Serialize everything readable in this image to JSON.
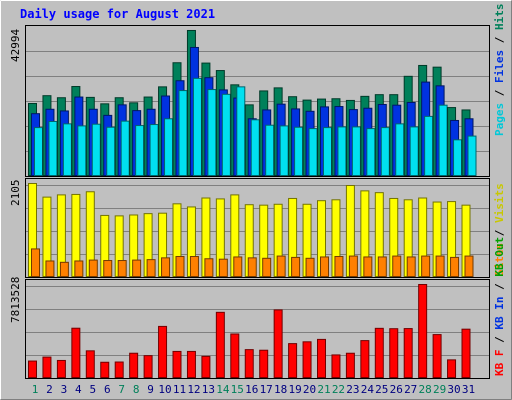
{
  "chart_data": [
    {
      "type": "bar",
      "title": "Daily usage for August 2021",
      "ymax_label": "42994",
      "ylim": [
        0,
        42994
      ],
      "grid": true,
      "categories": [
        "1",
        "2",
        "3",
        "4",
        "5",
        "6",
        "7",
        "8",
        "9",
        "10",
        "11",
        "12",
        "13",
        "14",
        "15",
        "16",
        "17",
        "18",
        "19",
        "20",
        "21",
        "22",
        "23",
        "24",
        "25",
        "26",
        "27",
        "28",
        "29",
        "30",
        "31"
      ],
      "weekend_days": [
        "1",
        "7",
        "8",
        "14",
        "15",
        "21",
        "22",
        "28",
        "29"
      ],
      "series": [
        {
          "name": "Hits",
          "color": "#00805a",
          "values": [
            21500,
            23800,
            23200,
            26500,
            23300,
            21400,
            23200,
            21700,
            23400,
            26400,
            33500,
            43000,
            33400,
            31200,
            27000,
            21100,
            25200,
            26100,
            23500,
            22500,
            22800,
            22900,
            22400,
            23600,
            24100,
            24100,
            29500,
            32700,
            32200,
            20300,
            19600
          ]
        },
        {
          "name": "Files",
          "color": "#0032e0",
          "values": [
            18500,
            19800,
            19300,
            23400,
            19800,
            18000,
            21100,
            19400,
            19800,
            23700,
            28200,
            38000,
            29100,
            25500,
            23100,
            17000,
            19600,
            21300,
            19900,
            19200,
            20500,
            20600,
            19700,
            20100,
            21200,
            21000,
            21800,
            27800,
            26700,
            16500,
            17000
          ]
        },
        {
          "name": "Pages",
          "color": "#00e0f0",
          "values": [
            14400,
            16200,
            15500,
            14900,
            15400,
            14500,
            16300,
            15000,
            15300,
            17000,
            25300,
            28900,
            25600,
            24200,
            26400,
            16700,
            15100,
            14900,
            14500,
            14100,
            14400,
            14600,
            14600,
            14100,
            14400,
            15500,
            14600,
            17700,
            21000,
            10800,
            11900
          ]
        }
      ]
    },
    {
      "type": "bar",
      "ymax_label": "2105",
      "ylim": [
        0,
        2105
      ],
      "grid": true,
      "categories": [
        "1",
        "2",
        "3",
        "4",
        "5",
        "6",
        "7",
        "8",
        "9",
        "10",
        "11",
        "12",
        "13",
        "14",
        "15",
        "16",
        "17",
        "18",
        "19",
        "20",
        "21",
        "22",
        "23",
        "24",
        "25",
        "26",
        "27",
        "28",
        "29",
        "30",
        "31"
      ],
      "series": [
        {
          "name": "Visits",
          "color": "#ffff00",
          "values": [
            2105,
            1800,
            1850,
            1860,
            1920,
            1390,
            1380,
            1400,
            1430,
            1440,
            1650,
            1580,
            1780,
            1760,
            1850,
            1630,
            1620,
            1640,
            1770,
            1640,
            1720,
            1740,
            2060,
            1940,
            1900,
            1770,
            1740,
            1780,
            1690,
            1700,
            1620
          ]
        },
        {
          "name": "Sites",
          "color": "#ff8000",
          "values": [
            640,
            370,
            340,
            370,
            390,
            380,
            380,
            390,
            400,
            440,
            470,
            470,
            420,
            410,
            460,
            440,
            430,
            480,
            450,
            430,
            460,
            470,
            480,
            460,
            460,
            480,
            460,
            480,
            480,
            450,
            480
          ]
        }
      ]
    },
    {
      "type": "bar",
      "ymax_label": "7813528",
      "ylim": [
        0,
        7813528
      ],
      "grid": true,
      "categories": [
        "1",
        "2",
        "3",
        "4",
        "5",
        "6",
        "7",
        "8",
        "9",
        "10",
        "11",
        "12",
        "13",
        "14",
        "15",
        "16",
        "17",
        "18",
        "19",
        "20",
        "21",
        "22",
        "23",
        "24",
        "25",
        "26",
        "27",
        "28",
        "29",
        "30",
        "31"
      ],
      "series": [
        {
          "name": "KB F",
          "color": "#ff0000",
          "values": [
            1450000,
            1780000,
            1500000,
            4180000,
            2300000,
            1350000,
            1370000,
            2100000,
            1900000,
            4330000,
            2250000,
            2250000,
            1840000,
            5500000,
            3700000,
            2400000,
            2350000,
            5700000,
            2900000,
            3050000,
            3250000,
            1960000,
            2100000,
            3150000,
            4170000,
            4140000,
            4150000,
            7813528,
            3650000,
            1550000,
            4100000
          ]
        }
      ]
    }
  ],
  "legend_top": [
    {
      "text": "Pages",
      "color": "#00c8d8"
    },
    {
      "text": " / ",
      "color": "#000000"
    },
    {
      "text": "Files",
      "color": "#0032e0"
    },
    {
      "text": " / ",
      "color": "#000000"
    },
    {
      "text": "Hits",
      "color": "#00805a"
    }
  ],
  "legend_mid": [
    {
      "text": "Sites",
      "color": "#ff8000"
    },
    {
      "text": " / ",
      "color": "#000000"
    },
    {
      "text": "Visits",
      "color": "#c8c800"
    }
  ],
  "legend_bot": [
    {
      "text": "KB F",
      "color": "#ff0000"
    },
    {
      "text": " / ",
      "color": "#000000"
    },
    {
      "text": "KB In",
      "color": "#0032e0"
    },
    {
      "text": " / ",
      "color": "#000000"
    },
    {
      "text": "KB Out",
      "color": "#00a000"
    }
  ],
  "colors": {
    "title": "#0000ff",
    "weekday_label": "#000080",
    "weekend_label": "#00805a",
    "panel_bg": "#c0c0c0"
  }
}
